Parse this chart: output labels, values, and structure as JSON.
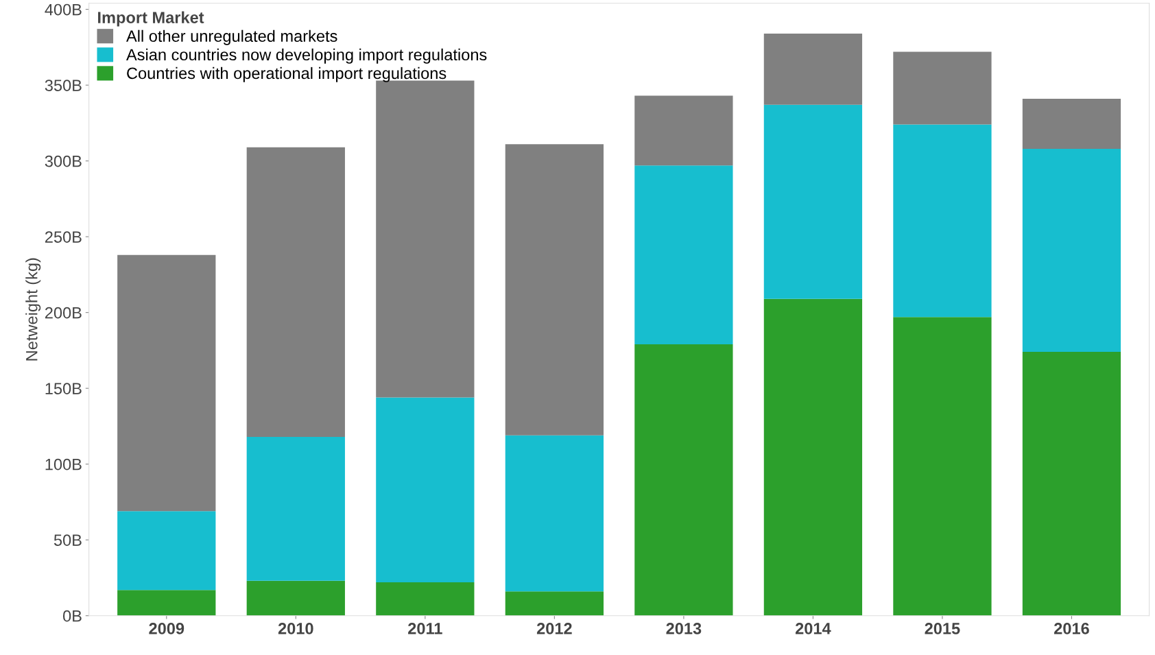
{
  "chart_data": {
    "type": "bar",
    "stacked": true,
    "ylabel": "Netweight (kg)",
    "legend_title": "Import Market",
    "legend": "top left",
    "grid": false,
    "categories": [
      "2009",
      "2010",
      "2011",
      "2012",
      "2013",
      "2014",
      "2015",
      "2016"
    ],
    "series": [
      {
        "name": "Countries with operational import regulations",
        "color": "#2ca02c",
        "values": [
          17,
          23,
          22,
          16,
          179,
          209,
          197,
          174
        ]
      },
      {
        "name": "Asian countries now developing import regulations",
        "color": "#17becf",
        "values": [
          52,
          95,
          122,
          103,
          118,
          128,
          127,
          134
        ]
      },
      {
        "name": "All other unregulated markets",
        "color": "#808080",
        "values": [
          169,
          191,
          209,
          192,
          46,
          47,
          48,
          33
        ]
      }
    ],
    "ylim": [
      0,
      404
    ],
    "yticks": [
      {
        "value": 0,
        "label": "0B"
      },
      {
        "value": 50,
        "label": "50B"
      },
      {
        "value": 100,
        "label": "100B"
      },
      {
        "value": 150,
        "label": "150B"
      },
      {
        "value": 200,
        "label": "200B"
      },
      {
        "value": 250,
        "label": "250B"
      },
      {
        "value": 300,
        "label": "300B"
      },
      {
        "value": 350,
        "label": "350B"
      },
      {
        "value": 400,
        "label": "400B"
      }
    ]
  }
}
